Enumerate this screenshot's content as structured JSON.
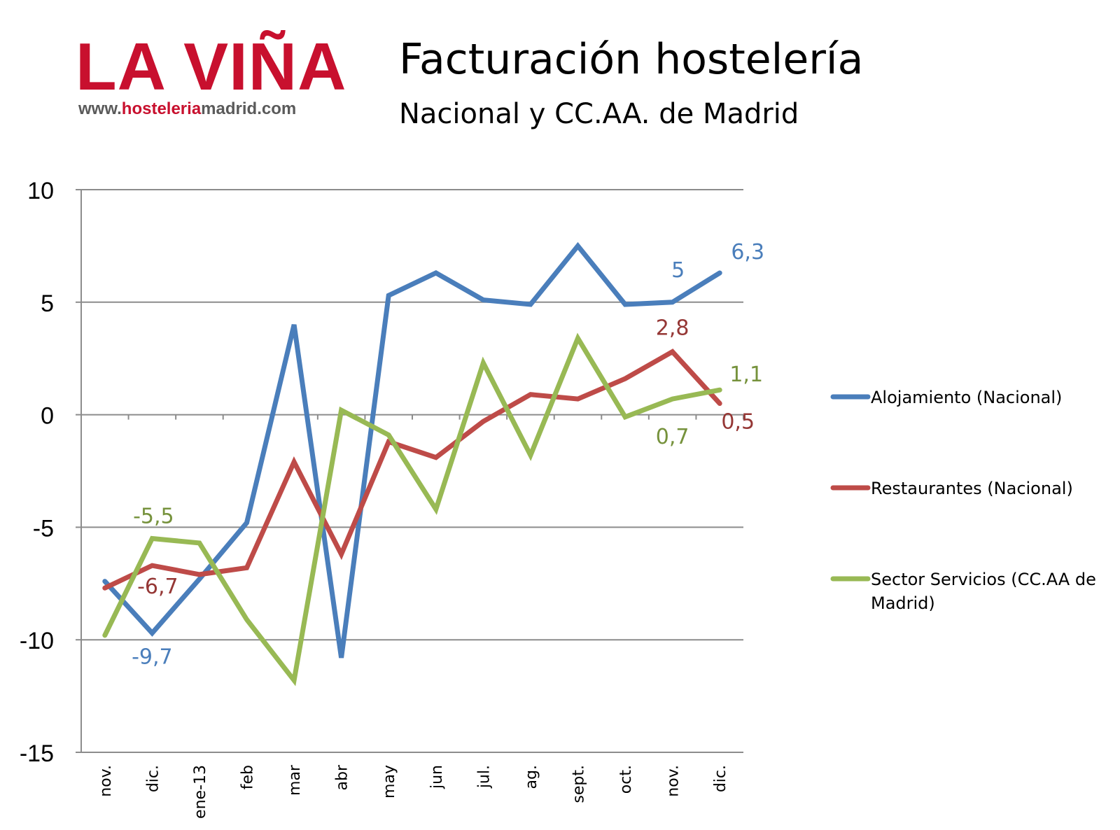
{
  "logo": {
    "brand": "LA VIÑA",
    "url_prefix": "www.",
    "url_highlight": "hosteleria",
    "url_suffix": "madrid.com"
  },
  "header": {
    "title": "Facturación hostelería",
    "subtitle": "Nacional y CC.AA. de Madrid"
  },
  "chart_data": {
    "type": "line",
    "title": "Facturación hostelería",
    "subtitle": "Nacional y CC.AA. de Madrid",
    "xlabel": "",
    "ylabel": "",
    "ylim": [
      -15,
      10
    ],
    "yticks": [
      -15,
      -10,
      -5,
      0,
      5,
      10
    ],
    "ytick_labels": [
      "-15",
      "-10",
      "-5",
      "0",
      "5",
      "10"
    ],
    "grid": "horizontal",
    "legend_position": "right",
    "categories": [
      "nov.",
      "dic.",
      "ene-13",
      "feb",
      "mar",
      "abr",
      "may",
      "jun",
      "jul.",
      "ag.",
      "sept.",
      "oct.",
      "nov.",
      "dic."
    ],
    "series": [
      {
        "name": "Alojamiento (Nacional)",
        "color": "#4a7ebb",
        "values": [
          -7.4,
          -9.7,
          -7.3,
          -4.8,
          4.0,
          -10.8,
          5.3,
          6.3,
          5.1,
          4.9,
          7.5,
          4.9,
          5.0,
          6.3
        ]
      },
      {
        "name": "Restaurantes (Nacional)",
        "color": "#be4b48",
        "values": [
          -7.7,
          -6.7,
          -7.1,
          -6.8,
          -2.1,
          -6.2,
          -1.2,
          -1.9,
          -0.3,
          0.9,
          0.7,
          1.6,
          2.8,
          0.5
        ]
      },
      {
        "name": "Sector Servicios (CC.AA de Madrid)",
        "color": "#98b954",
        "values": [
          -9.8,
          -5.5,
          -5.7,
          -9.1,
          -11.8,
          0.2,
          -0.9,
          -4.2,
          2.3,
          -1.8,
          3.4,
          -0.1,
          0.7,
          1.1
        ]
      }
    ],
    "data_labels": [
      {
        "series": 0,
        "index": 1,
        "text": "-9,7",
        "color": "#4a7ebb"
      },
      {
        "series": 0,
        "index": 12,
        "text": "5",
        "color": "#4a7ebb"
      },
      {
        "series": 0,
        "index": 13,
        "text": "6,3",
        "color": "#4a7ebb"
      },
      {
        "series": 1,
        "index": 1,
        "text": "-6,7",
        "color": "#953735"
      },
      {
        "series": 1,
        "index": 12,
        "text": "2,8",
        "color": "#953735"
      },
      {
        "series": 1,
        "index": 13,
        "text": "0,5",
        "color": "#953735"
      },
      {
        "series": 2,
        "index": 1,
        "text": "-5,5",
        "color": "#76923c"
      },
      {
        "series": 2,
        "index": 12,
        "text": "0,7",
        "color": "#76923c"
      },
      {
        "series": 2,
        "index": 13,
        "text": "1,1",
        "color": "#76923c"
      }
    ]
  }
}
